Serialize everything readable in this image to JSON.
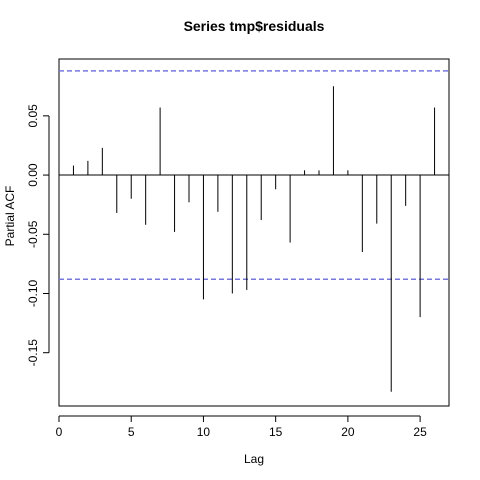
{
  "chart_data": {
    "type": "bar",
    "title": "Series  tmp$residuals",
    "xlabel": "Lag",
    "ylabel": "Partial ACF",
    "xlim": [
      0,
      27
    ],
    "ylim": [
      -0.195,
      0.098
    ],
    "x_ticks": [
      0,
      5,
      10,
      15,
      20,
      25
    ],
    "y_ticks": [
      -0.15,
      -0.1,
      -0.05,
      0.0,
      0.05
    ],
    "y_tick_labels": [
      "-0.15",
      "-0.10",
      "-0.05",
      "0.00",
      "0.05"
    ],
    "lags": [
      1,
      2,
      3,
      4,
      5,
      6,
      7,
      8,
      9,
      10,
      11,
      12,
      13,
      14,
      15,
      16,
      17,
      18,
      19,
      20,
      21,
      22,
      23,
      24,
      25,
      26
    ],
    "values": [
      0.008,
      0.012,
      0.023,
      -0.032,
      -0.02,
      -0.042,
      0.057,
      -0.048,
      -0.023,
      -0.105,
      -0.031,
      -0.1,
      -0.097,
      -0.038,
      -0.012,
      -0.057,
      0.004,
      0.004,
      0.075,
      0.004,
      -0.065,
      -0.041,
      -0.183,
      -0.026,
      -0.12,
      0.057
    ],
    "ci": 0.088,
    "ci_color": "#7777dd",
    "bar_color": "#000000",
    "grid": false,
    "legend": "none"
  }
}
